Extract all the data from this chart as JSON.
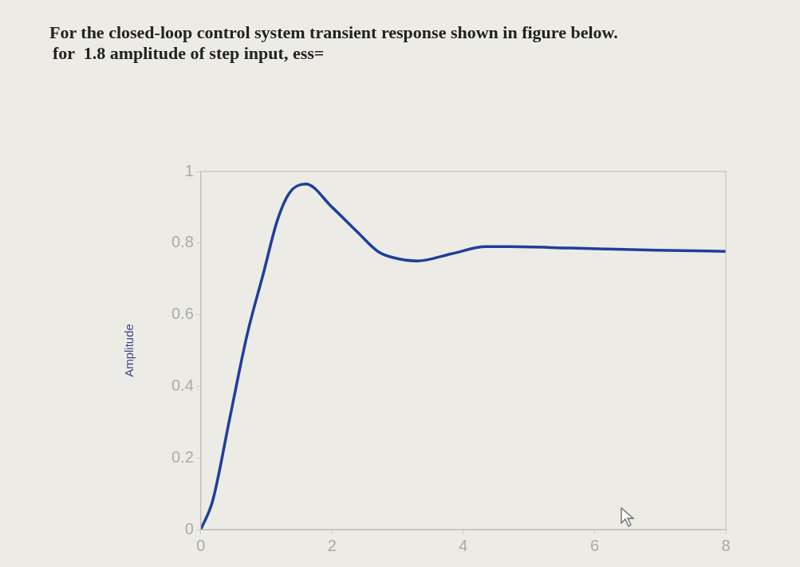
{
  "chart_data": {
    "type": "line",
    "title": "For the closed-loop control system transient response shown in figure below.",
    "subtitle": "for  1.8 amplitude of step input, ess=",
    "ylabel": "Amplitude",
    "series": [
      {
        "color": "#1f3f9a",
        "x": [
          0,
          0.18,
          0.44,
          0.7,
          0.96,
          1.16,
          1.35,
          1.6,
          2,
          2.39,
          2.71,
          3.04,
          3.3,
          3.82,
          4.34,
          4.7,
          5.64,
          6.94,
          8
        ],
        "values": [
          0,
          0.08,
          0.31,
          0.54,
          0.72,
          0.86,
          0.94,
          0.965,
          0.9,
          0.83,
          0.775,
          0.755,
          0.75,
          0.77,
          0.79,
          0.79,
          0.786,
          0.78,
          0.777
        ]
      }
    ],
    "xlim": [
      0,
      8
    ],
    "xticks": [
      0,
      2,
      4,
      6,
      8
    ],
    "ylim": [
      0,
      1
    ],
    "yticks": [
      0,
      0.2,
      0.4,
      0.6,
      0.8,
      1
    ],
    "grid": false,
    "legend": false,
    "marker": "none",
    "line_style": "solid"
  }
}
